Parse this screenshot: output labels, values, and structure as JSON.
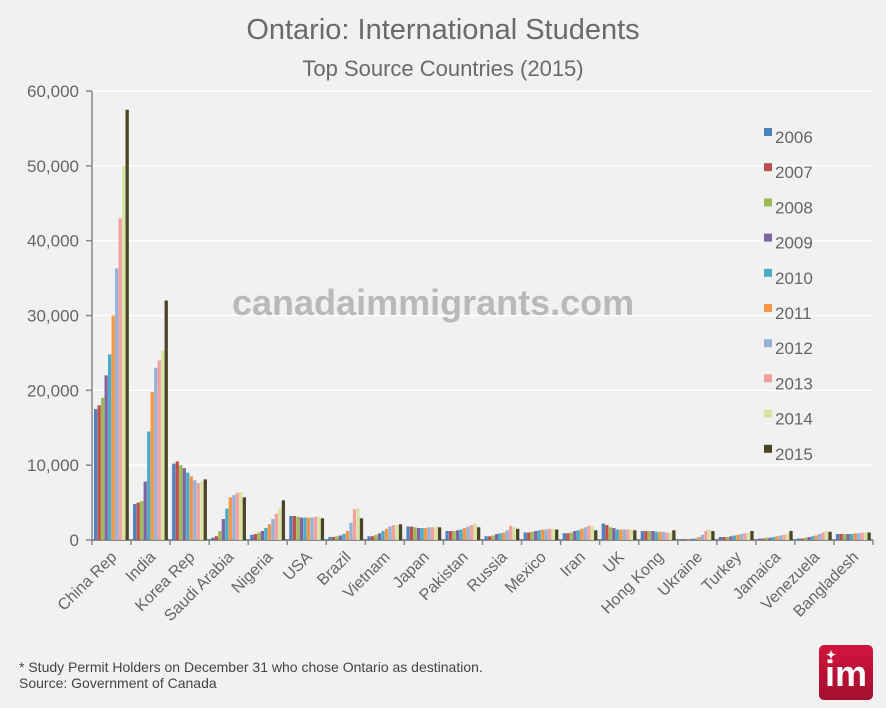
{
  "chart_data": {
    "type": "bar",
    "title": "Ontario: International Students",
    "subtitle": "Top Source Countries (2015)",
    "xlabel": "",
    "ylabel": "",
    "ylim": [
      0,
      60000
    ],
    "yticks": [
      "0",
      "10,000",
      "20,000",
      "30,000",
      "40,000",
      "50,000",
      "60,000"
    ],
    "grid": true,
    "legend_position": "right",
    "categories": [
      "China Rep",
      "India",
      "Korea Rep",
      "Saudi Arabia",
      "Nigeria",
      "USA",
      "Brazil",
      "Vietnam",
      "Japan",
      "Pakistan",
      "Russia",
      "Mexico",
      "Iran",
      "UK",
      "Hong Kong",
      "Ukraine",
      "Turkey",
      "Jamaica",
      "Venezuela",
      "Bangladesh"
    ],
    "series": [
      {
        "name": "2006",
        "color": "#4f81bd",
        "values": [
          17500,
          4800,
          10200,
          300,
          700,
          3200,
          400,
          500,
          1800,
          1200,
          500,
          1000,
          900,
          2200,
          1200,
          100,
          400,
          200,
          200,
          800
        ]
      },
      {
        "name": "2007",
        "color": "#c0504d",
        "values": [
          18000,
          5000,
          10500,
          500,
          800,
          3200,
          400,
          500,
          1800,
          1200,
          500,
          1000,
          900,
          2000,
          1200,
          100,
          400,
          200,
          200,
          800
        ]
      },
      {
        "name": "2008",
        "color": "#9bbb59",
        "values": [
          19000,
          5200,
          10000,
          1200,
          1000,
          3100,
          500,
          700,
          1700,
          1200,
          600,
          1100,
          1000,
          1700,
          1200,
          100,
          400,
          300,
          300,
          800
        ]
      },
      {
        "name": "2009",
        "color": "#8064a2",
        "values": [
          22000,
          7800,
          9600,
          2800,
          1200,
          3000,
          600,
          900,
          1600,
          1300,
          800,
          1200,
          1200,
          1600,
          1200,
          150,
          500,
          300,
          400,
          800
        ]
      },
      {
        "name": "2010",
        "color": "#4bacc6",
        "values": [
          24800,
          14500,
          9000,
          4200,
          1600,
          3000,
          800,
          1200,
          1600,
          1400,
          900,
          1300,
          1300,
          1400,
          1100,
          200,
          600,
          400,
          500,
          800
        ]
      },
      {
        "name": "2011",
        "color": "#f79646",
        "values": [
          30000,
          19800,
          8500,
          5700,
          2100,
          3000,
          1200,
          1500,
          1600,
          1600,
          1000,
          1400,
          1500,
          1400,
          1100,
          400,
          700,
          500,
          600,
          900
        ]
      },
      {
        "name": "2012",
        "color": "#95b3d7",
        "values": [
          36300,
          23000,
          8000,
          6000,
          2800,
          3000,
          2300,
          1800,
          1700,
          1800,
          1300,
          1400,
          1700,
          1400,
          1100,
          700,
          800,
          600,
          800,
          900
        ]
      },
      {
        "name": "2013",
        "color": "#f2a1a0",
        "values": [
          43000,
          24000,
          7600,
          6300,
          3500,
          3100,
          4100,
          2000,
          1700,
          2000,
          1900,
          1500,
          1900,
          1400,
          1000,
          1200,
          900,
          700,
          1000,
          1000
        ]
      },
      {
        "name": "2014",
        "color": "#d7e4a3",
        "values": [
          50000,
          25300,
          7800,
          6400,
          4200,
          3100,
          4200,
          2000,
          1800,
          2200,
          1700,
          1500,
          1800,
          1400,
          1000,
          1400,
          1000,
          900,
          1200,
          1000
        ]
      },
      {
        "name": "2015",
        "color": "#4a452a",
        "values": [
          57500,
          32000,
          8100,
          5700,
          5300,
          2900,
          2900,
          2100,
          1700,
          1700,
          1500,
          1400,
          1300,
          1300,
          1300,
          1200,
          1200,
          1200,
          1100,
          1000
        ]
      }
    ]
  },
  "watermark": "canadaimmigrants.com",
  "footnote": {
    "line1": "* Study Permit Holders on December 31 who chose Ontario as destination.",
    "line2": "Source: Government of Canada"
  },
  "logo": {
    "text": "im",
    "color": "#c8133a"
  }
}
